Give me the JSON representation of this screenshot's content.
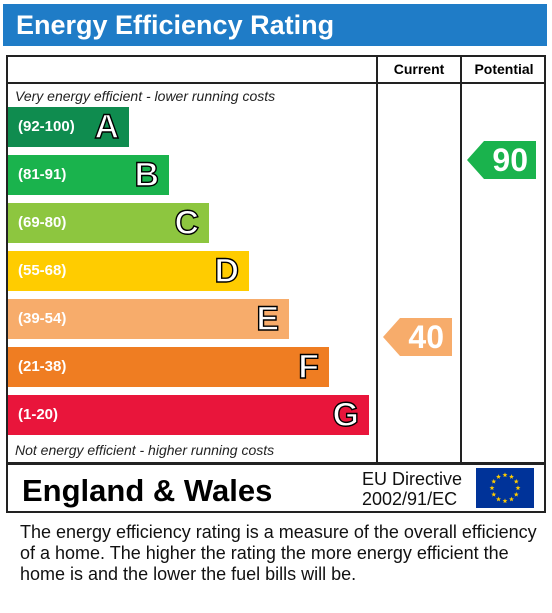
{
  "header": {
    "title": "Energy Efficiency Rating"
  },
  "columns": {
    "current": "Current",
    "potential": "Potential"
  },
  "notes": {
    "top": "Very energy efficient - lower running costs",
    "bottom": "Not energy efficient - higher running costs"
  },
  "bands": [
    {
      "range": "(92-100)",
      "letter": "A",
      "color": "#0f8c4f"
    },
    {
      "range": "(81-91)",
      "letter": "B",
      "color": "#1ab34d"
    },
    {
      "range": "(69-80)",
      "letter": "C",
      "color": "#8dc63f"
    },
    {
      "range": "(55-68)",
      "letter": "D",
      "color": "#ffcc00"
    },
    {
      "range": "(39-54)",
      "letter": "E",
      "color": "#f7ac6b"
    },
    {
      "range": "(21-38)",
      "letter": "F",
      "color": "#ef7d22"
    },
    {
      "range": "(1-20)",
      "letter": "G",
      "color": "#e9153b"
    }
  ],
  "ratings": {
    "current": {
      "value": "40",
      "band": "E",
      "color": "#f7ac6b"
    },
    "potential": {
      "value": "90",
      "band": "B",
      "color": "#1ab34d"
    }
  },
  "footer": {
    "region": "England & Wales",
    "directive_line1": "EU Directive",
    "directive_line2": "2002/91/EC",
    "flag": {
      "icon": "eu-flag-icon",
      "background": "#003399",
      "stars": "#ffcc00"
    }
  },
  "description": "The energy efficiency rating is a measure of the overall efficiency of a home.  The higher the rating the more energy efficient the home is and the lower the fuel bills will be."
}
